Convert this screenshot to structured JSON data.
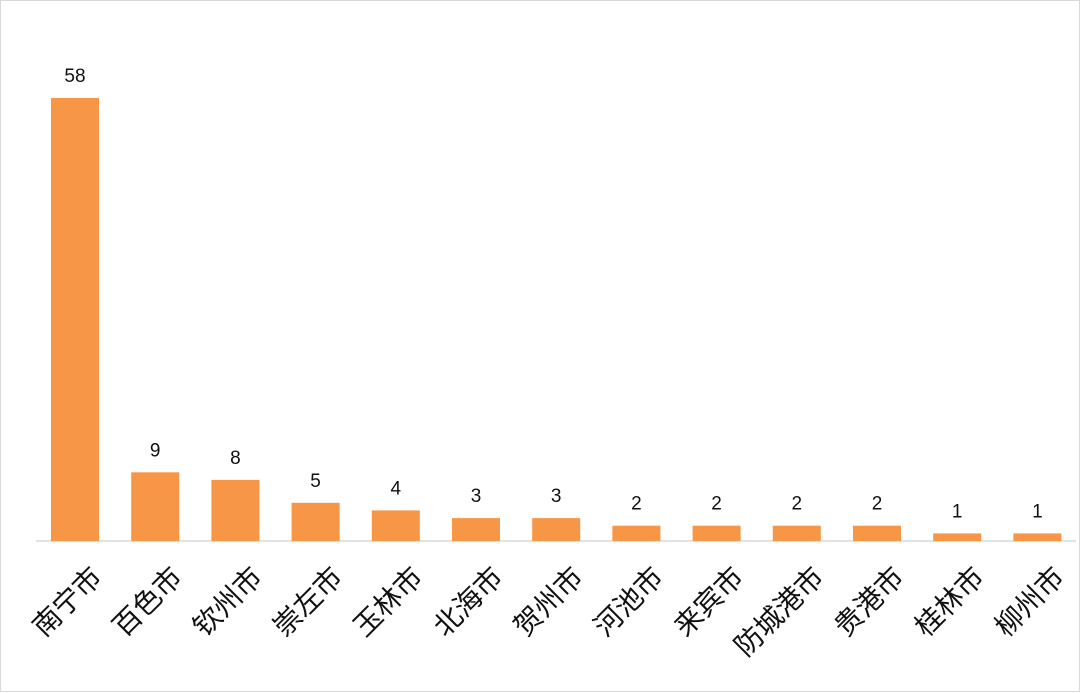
{
  "chart_data": {
    "type": "bar",
    "categories": [
      "南宁市",
      "百色市",
      "钦州市",
      "崇左市",
      "玉林市",
      "北海市",
      "贺州市",
      "河池市",
      "来宾市",
      "防城港市",
      "贵港市",
      "桂林市",
      "柳州市"
    ],
    "values": [
      58,
      9,
      8,
      5,
      4,
      3,
      3,
      2,
      2,
      2,
      2,
      1,
      1
    ],
    "title": "",
    "xlabel": "",
    "ylabel": "",
    "ylim": [
      0,
      58
    ],
    "grid": false,
    "legend": "none",
    "data_labels": true,
    "bar_color": "#f79646",
    "axis_color": "#d9d9d9"
  }
}
